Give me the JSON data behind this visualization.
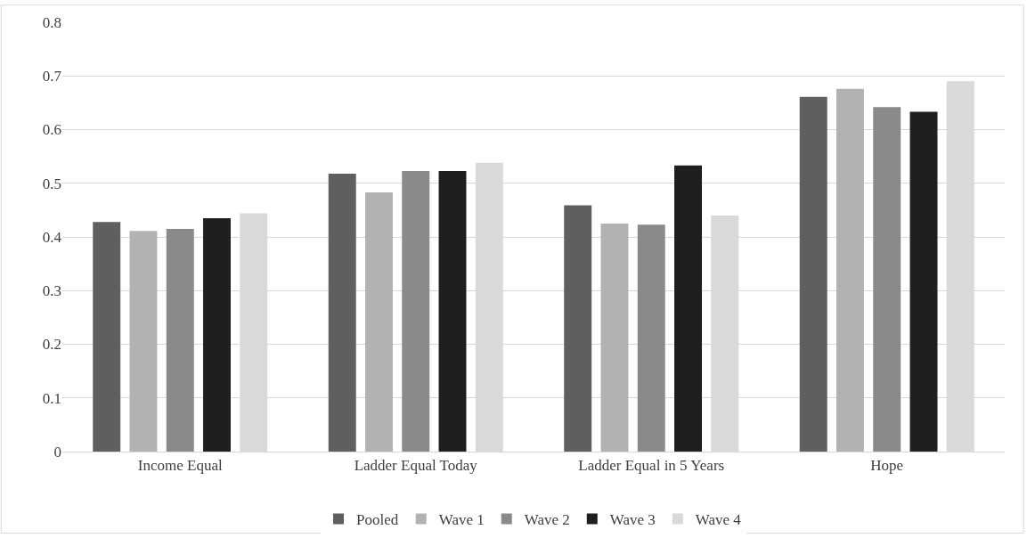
{
  "chart_data": {
    "type": "bar",
    "categories": [
      "Income Equal",
      "Ladder Equal Today",
      "Ladder Equal in 5 Years",
      "Hope"
    ],
    "series": [
      {
        "name": "Pooled",
        "color": "#5f5f5f",
        "values": [
          0.428,
          0.518,
          0.459,
          0.661
        ]
      },
      {
        "name": "Wave 1",
        "color": "#b2b2b2",
        "values": [
          0.411,
          0.483,
          0.425,
          0.676
        ]
      },
      {
        "name": "Wave 2",
        "color": "#8a8a8a",
        "values": [
          0.415,
          0.523,
          0.423,
          0.642
        ]
      },
      {
        "name": "Wave 3",
        "color": "#1f1f1f",
        "values": [
          0.435,
          0.523,
          0.533,
          0.633
        ]
      },
      {
        "name": "Wave 4",
        "color": "#d9d9d9",
        "values": [
          0.444,
          0.538,
          0.44,
          0.69
        ]
      }
    ],
    "ylim": [
      0,
      0.8
    ],
    "yticks": [
      0,
      0.1,
      0.2,
      0.3,
      0.4,
      0.5,
      0.6,
      0.7,
      0.8
    ],
    "grid": "y",
    "legend": "bottom"
  }
}
